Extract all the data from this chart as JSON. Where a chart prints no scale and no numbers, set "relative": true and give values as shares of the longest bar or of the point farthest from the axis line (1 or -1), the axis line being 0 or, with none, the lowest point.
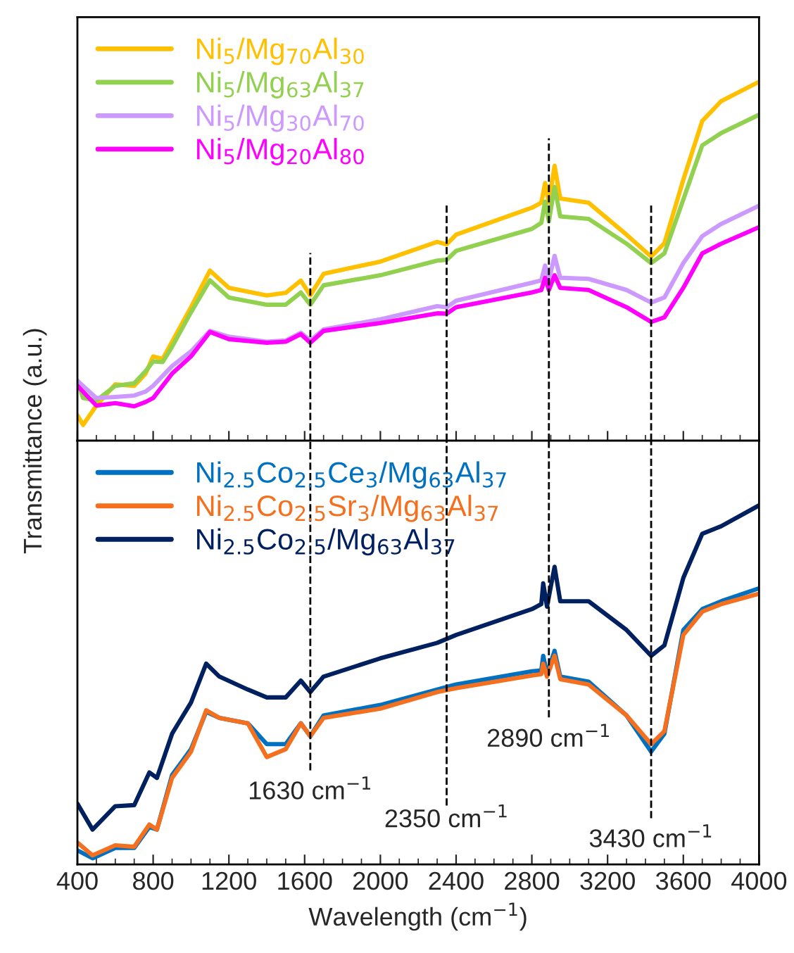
{
  "chart_data": [
    {
      "type": "line",
      "relative": true,
      "ylabel": "Transmittance (a.u.)",
      "xlim": [
        400,
        4000
      ],
      "xticks": [
        400,
        800,
        1200,
        1600,
        2000,
        2400,
        2800,
        3200,
        3600,
        4000
      ],
      "tick_labels": false,
      "legend": "top left",
      "grid": false,
      "ref_lines": [
        {
          "axis": "x",
          "value": 1630,
          "line_style": "dashed",
          "color": "#000000"
        },
        {
          "axis": "x",
          "value": 2350,
          "line_style": "dashed",
          "color": "#000000"
        },
        {
          "axis": "x",
          "value": 2890,
          "line_style": "dashed",
          "color": "#000000"
        },
        {
          "axis": "x",
          "value": 3430,
          "line_style": "dashed",
          "color": "#000000"
        }
      ],
      "series": [
        {
          "name": "Ni$_{5}$/Mg$_{70}$Al$_{30}$",
          "color": "#ffc000",
          "x": [
            400,
            430,
            500,
            600,
            700,
            760,
            800,
            850,
            900,
            1000,
            1100,
            1200,
            1400,
            1500,
            1580,
            1630,
            1700,
            2000,
            2300,
            2350,
            2400,
            2800,
            2850,
            2870,
            2890,
            2920,
            2950,
            3100,
            3300,
            3430,
            3500,
            3600,
            3700,
            3800,
            4000
          ],
          "values": [
            0.071,
            0.044,
            0.098,
            0.157,
            0.153,
            0.187,
            0.235,
            0.228,
            0.276,
            0.372,
            0.474,
            0.426,
            0.405,
            0.412,
            0.446,
            0.405,
            0.465,
            0.499,
            0.554,
            0.547,
            0.574,
            0.649,
            0.663,
            0.718,
            0.663,
            0.766,
            0.675,
            0.663,
            0.574,
            0.513,
            0.55,
            0.727,
            0.891,
            0.946,
            1.0
          ]
        },
        {
          "name": "Ni$_{5}$/Mg$_{63}$Al$_{37}$",
          "color": "#92d050",
          "x": [
            400,
            430,
            500,
            600,
            700,
            760,
            800,
            850,
            900,
            1000,
            1100,
            1200,
            1400,
            1500,
            1580,
            1630,
            1700,
            2000,
            2300,
            2350,
            2400,
            2800,
            2850,
            2870,
            2890,
            2920,
            2950,
            3100,
            3300,
            3430,
            3500,
            3600,
            3700,
            3800,
            4000
          ],
          "values": [
            0.167,
            0.119,
            0.112,
            0.153,
            0.16,
            0.194,
            0.221,
            0.219,
            0.262,
            0.358,
            0.447,
            0.399,
            0.379,
            0.379,
            0.413,
            0.379,
            0.433,
            0.461,
            0.502,
            0.504,
            0.529,
            0.59,
            0.607,
            0.666,
            0.611,
            0.707,
            0.625,
            0.618,
            0.549,
            0.495,
            0.522,
            0.672,
            0.823,
            0.857,
            0.908
          ]
        },
        {
          "name": "Ni$_{5}$/Mg$_{30}$Al$_{70}$",
          "color": "#cc99ff",
          "x": [
            400,
            500,
            600,
            700,
            760,
            800,
            900,
            1000,
            1100,
            1200,
            1400,
            1500,
            1580,
            1630,
            1700,
            2000,
            2300,
            2350,
            2400,
            2800,
            2850,
            2870,
            2890,
            2920,
            2950,
            3100,
            3300,
            3430,
            3500,
            3600,
            3700,
            3800,
            4000
          ],
          "values": [
            0.167,
            0.119,
            0.122,
            0.126,
            0.137,
            0.153,
            0.208,
            0.249,
            0.306,
            0.29,
            0.276,
            0.279,
            0.301,
            0.279,
            0.31,
            0.338,
            0.375,
            0.372,
            0.39,
            0.44,
            0.447,
            0.488,
            0.447,
            0.515,
            0.454,
            0.451,
            0.42,
            0.385,
            0.399,
            0.495,
            0.57,
            0.604,
            0.655
          ]
        },
        {
          "name": "Ni$_{5}$/Mg$_{20}$Al$_{80}$",
          "color": "#ff00ff",
          "x": [
            400,
            500,
            600,
            700,
            760,
            800,
            900,
            1000,
            1100,
            1200,
            1400,
            1500,
            1580,
            1630,
            1700,
            2000,
            2300,
            2350,
            2400,
            2800,
            2850,
            2870,
            2890,
            2920,
            2950,
            3100,
            3300,
            3430,
            3500,
            3600,
            3700,
            3800,
            4000
          ],
          "values": [
            0.153,
            0.098,
            0.105,
            0.096,
            0.108,
            0.119,
            0.187,
            0.235,
            0.303,
            0.283,
            0.273,
            0.276,
            0.297,
            0.273,
            0.306,
            0.328,
            0.355,
            0.354,
            0.372,
            0.413,
            0.42,
            0.454,
            0.42,
            0.461,
            0.426,
            0.42,
            0.372,
            0.331,
            0.344,
            0.426,
            0.522,
            0.549,
            0.595
          ]
        }
      ]
    },
    {
      "type": "line",
      "relative": true,
      "xlabel": "Wavelength (cm$^{−1}$)",
      "xlim": [
        400,
        4000
      ],
      "xticks": [
        400,
        800,
        1200,
        1600,
        2000,
        2400,
        2800,
        3200,
        3600,
        4000
      ],
      "tick_labels": "x",
      "legend": "top left",
      "grid": false,
      "ref_lines": [
        {
          "axis": "x",
          "value": 1630,
          "label": "1630 cm$^{−1}$",
          "line_style": "dashed",
          "color": "#000000"
        },
        {
          "axis": "x",
          "value": 2350,
          "label": "2350 cm$^{−1}$",
          "line_style": "dashed",
          "color": "#000000"
        },
        {
          "axis": "x",
          "value": 2890,
          "label": "2890 cm$^{−1}$",
          "line_style": "dashed",
          "color": "#000000"
        },
        {
          "axis": "x",
          "value": 3430,
          "label": "3430 cm$^{−1}$",
          "line_style": "dashed",
          "color": "#000000"
        }
      ],
      "series": [
        {
          "name": "Ni$_{2.5}$Co$_{2.5}$Ce$_{3}$/Mg$_{63}$Al$_{37}$",
          "color": "#0070c0",
          "x": [
            400,
            480,
            600,
            700,
            780,
            820,
            900,
            1000,
            1080,
            1150,
            1300,
            1400,
            1500,
            1580,
            1630,
            1700,
            2000,
            2300,
            2400,
            2800,
            2850,
            2860,
            2880,
            2920,
            2950,
            3100,
            3300,
            3430,
            3500,
            3600,
            3700,
            3800,
            4000
          ],
          "values": [
            0.039,
            0.017,
            0.046,
            0.046,
            0.104,
            0.097,
            0.249,
            0.321,
            0.425,
            0.408,
            0.393,
            0.335,
            0.335,
            0.393,
            0.357,
            0.415,
            0.444,
            0.487,
            0.501,
            0.538,
            0.54,
            0.581,
            0.53,
            0.595,
            0.523,
            0.509,
            0.415,
            0.314,
            0.364,
            0.653,
            0.711,
            0.733,
            0.769
          ]
        },
        {
          "name": "Ni$_{2.5}$Co$_{2.5}$Sr$_{3}$/Mg$_{63}$Al$_{37}$",
          "color": "#f4701f",
          "x": [
            400,
            480,
            600,
            700,
            780,
            820,
            900,
            1000,
            1080,
            1150,
            1300,
            1400,
            1500,
            1580,
            1630,
            1700,
            2000,
            2300,
            2400,
            2800,
            2850,
            2860,
            2880,
            2920,
            2950,
            3100,
            3300,
            3430,
            3500,
            3600,
            3700,
            3800,
            4000
          ],
          "values": [
            0.061,
            0.025,
            0.053,
            0.049,
            0.111,
            0.097,
            0.241,
            0.314,
            0.429,
            0.408,
            0.393,
            0.299,
            0.321,
            0.393,
            0.357,
            0.408,
            0.434,
            0.48,
            0.491,
            0.526,
            0.53,
            0.559,
            0.523,
            0.581,
            0.516,
            0.501,
            0.415,
            0.335,
            0.371,
            0.639,
            0.704,
            0.725,
            0.754
          ]
        },
        {
          "name": "Ni$_{2.5}$Co$_{2.5}$/Mg$_{63}$Al$_{37}$",
          "color": "#002060",
          "x": [
            400,
            480,
            600,
            700,
            780,
            820,
            900,
            1000,
            1080,
            1150,
            1300,
            1400,
            1500,
            1580,
            1630,
            1700,
            2000,
            2300,
            2400,
            2800,
            2850,
            2860,
            2880,
            2920,
            2950,
            3100,
            3300,
            3430,
            3500,
            3600,
            3700,
            3800,
            4000
          ],
          "values": [
            0.169,
            0.097,
            0.162,
            0.165,
            0.256,
            0.241,
            0.364,
            0.451,
            0.559,
            0.523,
            0.487,
            0.465,
            0.465,
            0.512,
            0.48,
            0.523,
            0.574,
            0.617,
            0.639,
            0.711,
            0.725,
            0.783,
            0.718,
            0.829,
            0.733,
            0.733,
            0.653,
            0.581,
            0.61,
            0.798,
            0.921,
            0.942,
            1.0
          ]
        }
      ]
    }
  ]
}
